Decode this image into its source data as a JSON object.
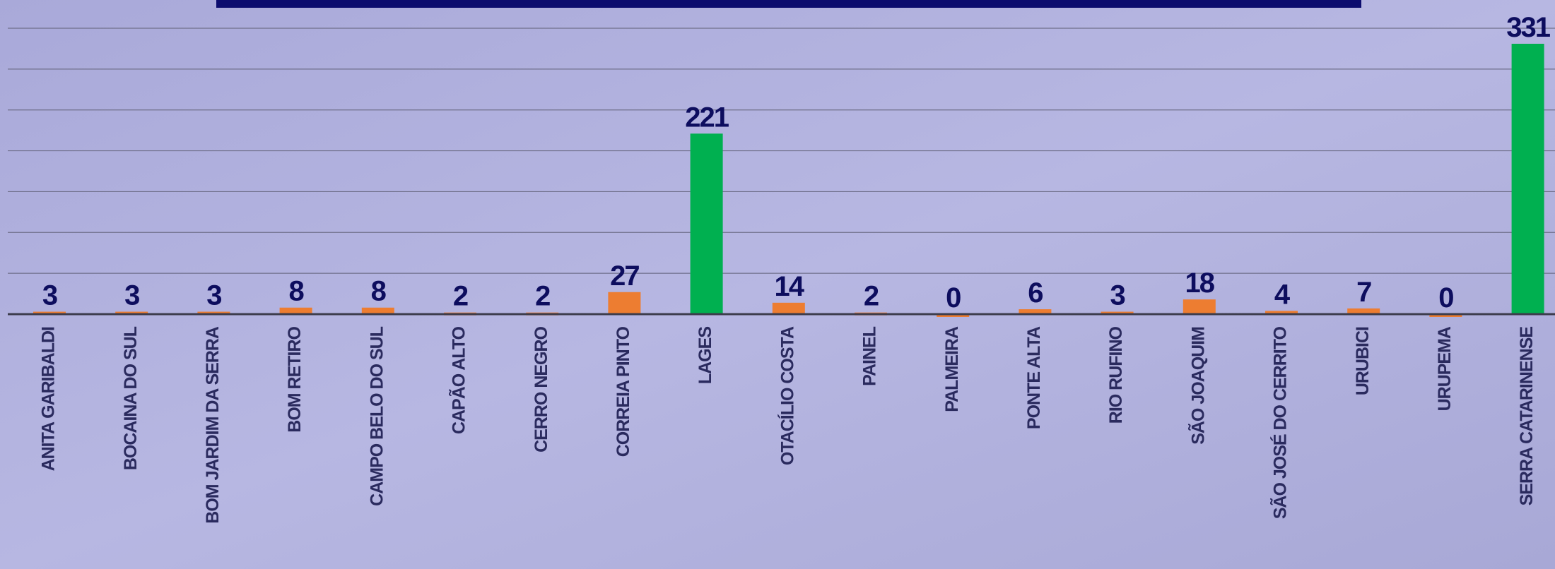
{
  "chart_data": {
    "type": "bar",
    "categories": [
      "ANITA GARIBALDI",
      "BOCAINA DO SUL",
      "BOM JARDIM DA SERRA",
      "BOM RETIRO",
      "CAMPO BELO DO SUL",
      "CAPÃO ALTO",
      "CERRO NEGRO",
      "CORREIA PINTO",
      "LAGES",
      "OTACÍLIO COSTA",
      "PAINEL",
      "PALMEIRA",
      "PONTE ALTA",
      "RIO RUFINO",
      "SÃO JOAQUIM",
      "SÃO JOSÉ DO CERRITO",
      "URUBICI",
      "URUPEMA",
      "SERRA CATARINENSE"
    ],
    "values": [
      3,
      3,
      3,
      8,
      8,
      2,
      2,
      27,
      221,
      14,
      2,
      0,
      6,
      3,
      18,
      4,
      7,
      0,
      331
    ],
    "colors": [
      "#ed7d31",
      "#ed7d31",
      "#ed7d31",
      "#ed7d31",
      "#ed7d31",
      "#ed7d31",
      "#ed7d31",
      "#ed7d31",
      "#00b050",
      "#ed7d31",
      "#ed7d31",
      "#ed7d31",
      "#ed7d31",
      "#ed7d31",
      "#ed7d31",
      "#ed7d31",
      "#ed7d31",
      "#ed7d31",
      "#00b050"
    ],
    "ylim": [
      0,
      350
    ],
    "yticks": [
      0,
      50,
      100,
      150,
      200,
      250,
      300,
      350
    ],
    "grid": true
  }
}
